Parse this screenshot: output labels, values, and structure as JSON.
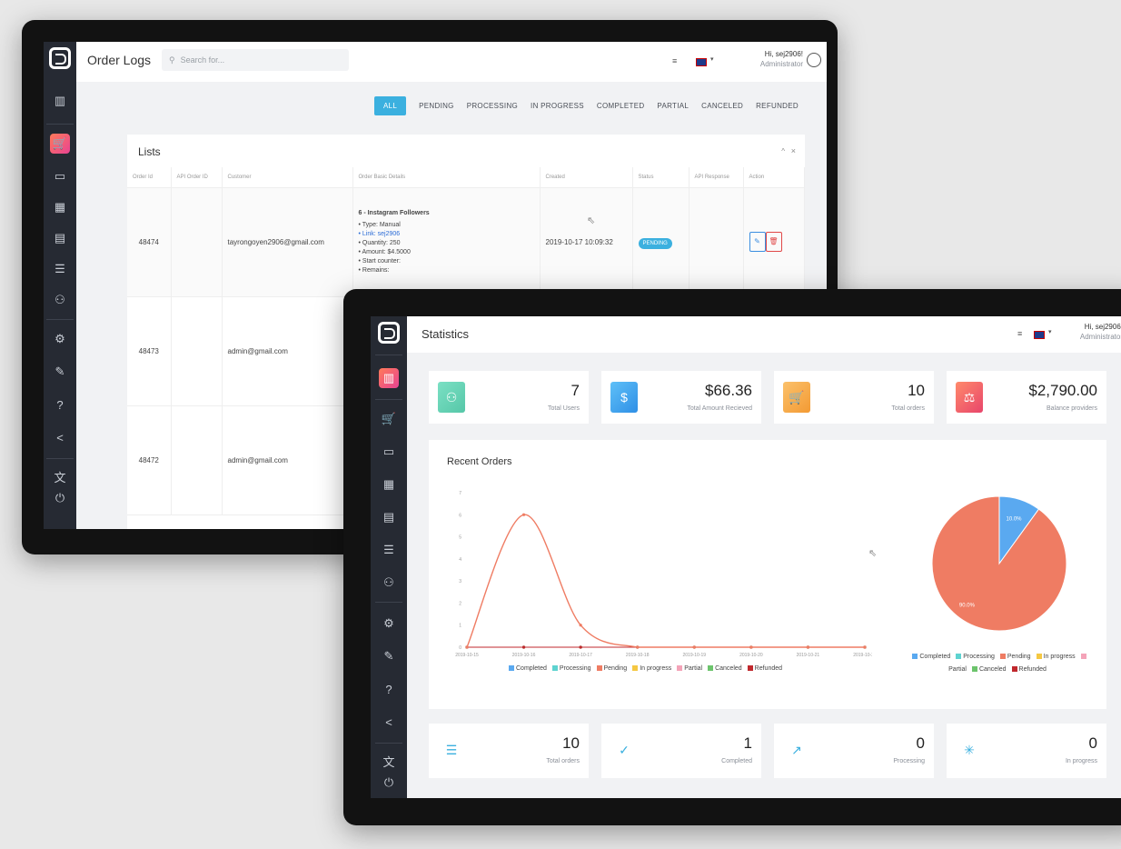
{
  "back_window": {
    "title": "Order Logs",
    "search_placeholder": "Search for...",
    "user_name": "Hi, sej2906!",
    "user_role": "Administrator",
    "filters": [
      "ALL",
      "PENDING",
      "PROCESSING",
      "IN PROGRESS",
      "COMPLETED",
      "PARTIAL",
      "CANCELED",
      "REFUNDED"
    ],
    "active_filter": "ALL",
    "list_title": "Lists",
    "columns": [
      "Order Id",
      "API Order ID",
      "Customer",
      "Order Basic Details",
      "Created",
      "Status",
      "API Response",
      "Action"
    ],
    "rows": [
      {
        "order_id": "48474",
        "customer": "tayrongoyen2906@gmail.com",
        "detail_title": "6 - Instagram Followers",
        "details": [
          "Type: Manual",
          "Link: sej2906",
          "Quantity: 250",
          "Amount: $4.5000",
          "Start counter:",
          "Remains:"
        ],
        "created": "2019-10-17 10:09:32",
        "status": "PENDING"
      },
      {
        "order_id": "48473",
        "customer": "admin@gmail.com"
      },
      {
        "order_id": "48472",
        "customer": "admin@gmail.com"
      }
    ]
  },
  "front_window": {
    "title": "Statistics",
    "user_name": "Hi, sej2906!",
    "user_role": "Administrator",
    "stats_top": [
      {
        "value": "7",
        "label": "Total Users",
        "icon": "users-icon",
        "color": "#5ed3b5"
      },
      {
        "value": "$66.36",
        "label": "Total Amount Recieved",
        "icon": "dollar-icon",
        "color": "#3fa9f5"
      },
      {
        "value": "10",
        "label": "Total orders",
        "icon": "cart-icon",
        "color": "#f7a94b"
      },
      {
        "value": "$2,790.00",
        "label": "Balance providers",
        "icon": "scale-icon",
        "color": "#f0574d"
      }
    ],
    "chart_title": "Recent Orders",
    "stats_bottom": [
      {
        "value": "10",
        "label": "Total orders",
        "icon": "list-icon",
        "color": "#3bb0df"
      },
      {
        "value": "1",
        "label": "Completed",
        "icon": "check-icon",
        "color": "#3bb0df"
      },
      {
        "value": "0",
        "label": "Processing",
        "icon": "trend-icon",
        "color": "#3bb0df"
      },
      {
        "value": "0",
        "label": "In progress",
        "icon": "spinner-icon",
        "color": "#3bb0df"
      }
    ]
  },
  "chart_data": [
    {
      "type": "line",
      "x": [
        "2019-10-15",
        "2019-10-16",
        "2019-10-17",
        "2019-10-18",
        "2019-10-19",
        "2019-10-20",
        "2019-10-21",
        "2019-10-22"
      ],
      "ylim": [
        0,
        7
      ],
      "series": [
        {
          "name": "Completed",
          "values": [
            0,
            0,
            0,
            0,
            0,
            0,
            0,
            0
          ],
          "color": "#5aa9f0"
        },
        {
          "name": "Processing",
          "values": [
            0,
            0,
            0,
            0,
            0,
            0,
            0,
            0
          ],
          "color": "#5ed3d0"
        },
        {
          "name": "Pending",
          "values": [
            0,
            6,
            1,
            0,
            0,
            0,
            0,
            0
          ],
          "color": "#ef7c63"
        },
        {
          "name": "In progress",
          "values": [
            0,
            0,
            0,
            0,
            0,
            0,
            0,
            0
          ],
          "color": "#f5c842"
        },
        {
          "name": "Partial",
          "values": [
            0,
            0,
            0,
            0,
            0,
            0,
            0,
            0
          ],
          "color": "#f4a3b8"
        },
        {
          "name": "Canceled",
          "values": [
            0,
            0,
            0,
            0,
            0,
            0,
            0,
            0
          ],
          "color": "#6cc46c"
        },
        {
          "name": "Refunded",
          "values": [
            0,
            0,
            0,
            0,
            0,
            0,
            0,
            0
          ],
          "color": "#c0282d"
        }
      ],
      "legend": "bottom"
    },
    {
      "type": "pie",
      "categories": [
        "Completed",
        "Processing",
        "Pending",
        "In progress",
        "Partial",
        "Canceled",
        "Refunded"
      ],
      "values": [
        10.0,
        0,
        90.0,
        0,
        0,
        0,
        0
      ],
      "labels": [
        "10.0%",
        "",
        "90.0%",
        "",
        "",
        "",
        ""
      ],
      "colors": [
        "#5aa9f0",
        "#5ed3d0",
        "#ef7c63",
        "#f5c842",
        "#f4a3b8",
        "#6cc46c",
        "#c0282d"
      ],
      "legend": "bottom"
    }
  ]
}
